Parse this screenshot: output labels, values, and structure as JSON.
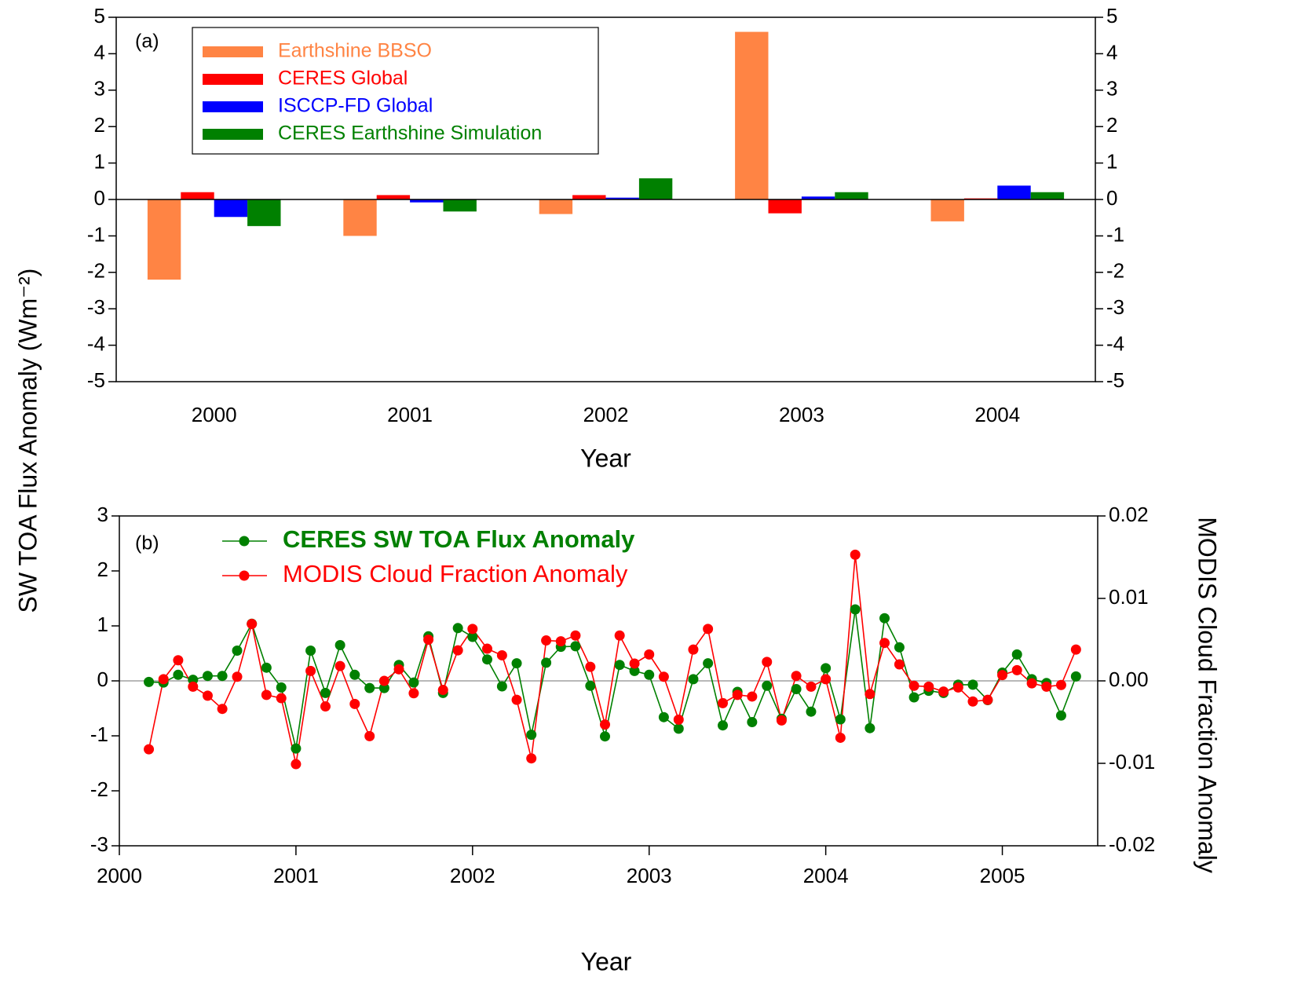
{
  "chart_data": [
    {
      "type": "bar",
      "annotation": "(a)",
      "ylabel": "SW TOA Flux Anomaly (Wm⁻²)",
      "xlabel": "Year",
      "categories": [
        "2000",
        "2001",
        "2002",
        "2003",
        "2004"
      ],
      "series": [
        {
          "name": "Earthshine BBSO",
          "color": "#ff8444",
          "values": [
            -2.2,
            -1.0,
            -0.4,
            4.6,
            -0.6
          ]
        },
        {
          "name": "CERES Global",
          "color": "#ff0000",
          "values": [
            0.2,
            0.12,
            0.12,
            -0.38,
            0.03
          ]
        },
        {
          "name": "ISCCP-FD Global",
          "color": "#0000ff",
          "values": [
            -0.48,
            -0.08,
            0.05,
            0.08,
            0.38
          ]
        },
        {
          "name": "CERES Earthshine Simulation",
          "color": "#008000",
          "values": [
            -0.73,
            -0.33,
            0.58,
            0.2,
            0.2
          ]
        }
      ],
      "ylim": [
        -5,
        5
      ],
      "yticks": [
        -5,
        -4,
        -3,
        -2,
        -1,
        0,
        1,
        2,
        3,
        4,
        5
      ],
      "legend": "upper left"
    },
    {
      "type": "line",
      "annotation": "(b)",
      "xlabel": "Year",
      "y2label": "MODIS Cloud Fraction Anomaly",
      "x": [
        2000.167,
        2000.25,
        2000.333,
        2000.417,
        2000.5,
        2000.583,
        2000.667,
        2000.75,
        2000.833,
        2000.917,
        2001,
        2001.083,
        2001.167,
        2001.25,
        2001.333,
        2001.417,
        2001.5,
        2001.583,
        2001.667,
        2001.75,
        2001.833,
        2001.917,
        2002,
        2002.083,
        2002.167,
        2002.25,
        2002.333,
        2002.417,
        2002.5,
        2002.583,
        2002.667,
        2002.75,
        2002.833,
        2002.917,
        2003,
        2003.083,
        2003.167,
        2003.25,
        2003.333,
        2003.417,
        2003.5,
        2003.583,
        2003.667,
        2003.75,
        2003.833,
        2003.917,
        2004,
        2004.083,
        2004.167,
        2004.25,
        2004.333,
        2004.417,
        2004.5,
        2004.583,
        2004.667,
        2004.75,
        2004.833,
        2004.917,
        2005,
        2005.083,
        2005.167,
        2005.25,
        2005.333,
        2005.417
      ],
      "series": [
        {
          "name": "CERES SW TOA Flux Anomaly",
          "color": "#008000",
          "values": [
            -0.02,
            -0.03,
            0.11,
            0.02,
            0.09,
            0.09,
            0.55,
            1.04,
            0.24,
            -0.12,
            -1.23,
            0.55,
            -0.22,
            0.65,
            0.11,
            -0.13,
            -0.13,
            0.29,
            -0.03,
            0.81,
            -0.22,
            0.96,
            0.8,
            0.39,
            -0.1,
            0.32,
            -0.98,
            0.33,
            0.62,
            0.63,
            -0.09,
            -1.01,
            0.29,
            0.18,
            0.11,
            -0.66,
            -0.87,
            0.03,
            0.32,
            -0.81,
            -0.2,
            -0.75,
            -0.09,
            -0.69,
            -0.15,
            -0.56,
            0.23,
            -0.7,
            1.3,
            -0.86,
            1.14,
            0.61,
            -0.3,
            -0.18,
            -0.22,
            -0.07,
            -0.07,
            -0.35,
            0.15,
            0.48,
            0.03,
            -0.04,
            -0.63,
            0.08
          ]
        },
        {
          "name": "MODIS Cloud Fraction Anomaly",
          "color": "#ff0000",
          "axis": "y2",
          "values": [
            -0.0083,
            0.0002,
            0.0025,
            -0.0007,
            -0.0018,
            -0.0034,
            0.0005,
            0.0069,
            -0.0017,
            -0.0021,
            -0.0101,
            0.0012,
            -0.0031,
            0.0018,
            -0.0028,
            -0.0067,
            0.0,
            0.0014,
            -0.0015,
            0.005,
            -0.0011,
            0.0037,
            0.0063,
            0.0039,
            0.0031,
            -0.0023,
            -0.0094,
            0.0049,
            0.0048,
            0.0055,
            0.0017,
            -0.0053,
            0.0055,
            0.0021,
            0.0032,
            0.0005,
            -0.0047,
            0.0038,
            0.0063,
            -0.0027,
            -0.0017,
            -0.0019,
            0.0023,
            -0.0048,
            0.0006,
            -0.0007,
            0.0002,
            -0.0069,
            0.0153,
            -0.0016,
            0.0046,
            0.002,
            -0.0006,
            -0.0007,
            -0.0013,
            -0.0008,
            -0.0025,
            -0.0023,
            0.0007,
            0.0013,
            -0.0003,
            -0.0007,
            -0.0005,
            0.0038
          ]
        }
      ],
      "xlim": [
        2000,
        2005.54
      ],
      "xticks": [
        2000,
        2001,
        2002,
        2003,
        2004,
        2005
      ],
      "ylim": [
        -3,
        3
      ],
      "yticks": [
        -3,
        -2,
        -1,
        0,
        1,
        2,
        3
      ],
      "y2lim": [
        -0.02,
        0.02
      ],
      "y2ticks": [
        -0.02,
        -0.01,
        {
          "value": 0,
          "label": "0.00"
        },
        0.01,
        0.02
      ],
      "reference_line": 0,
      "reference_line_color": "#a0a0a0",
      "legend": "upper left"
    }
  ]
}
